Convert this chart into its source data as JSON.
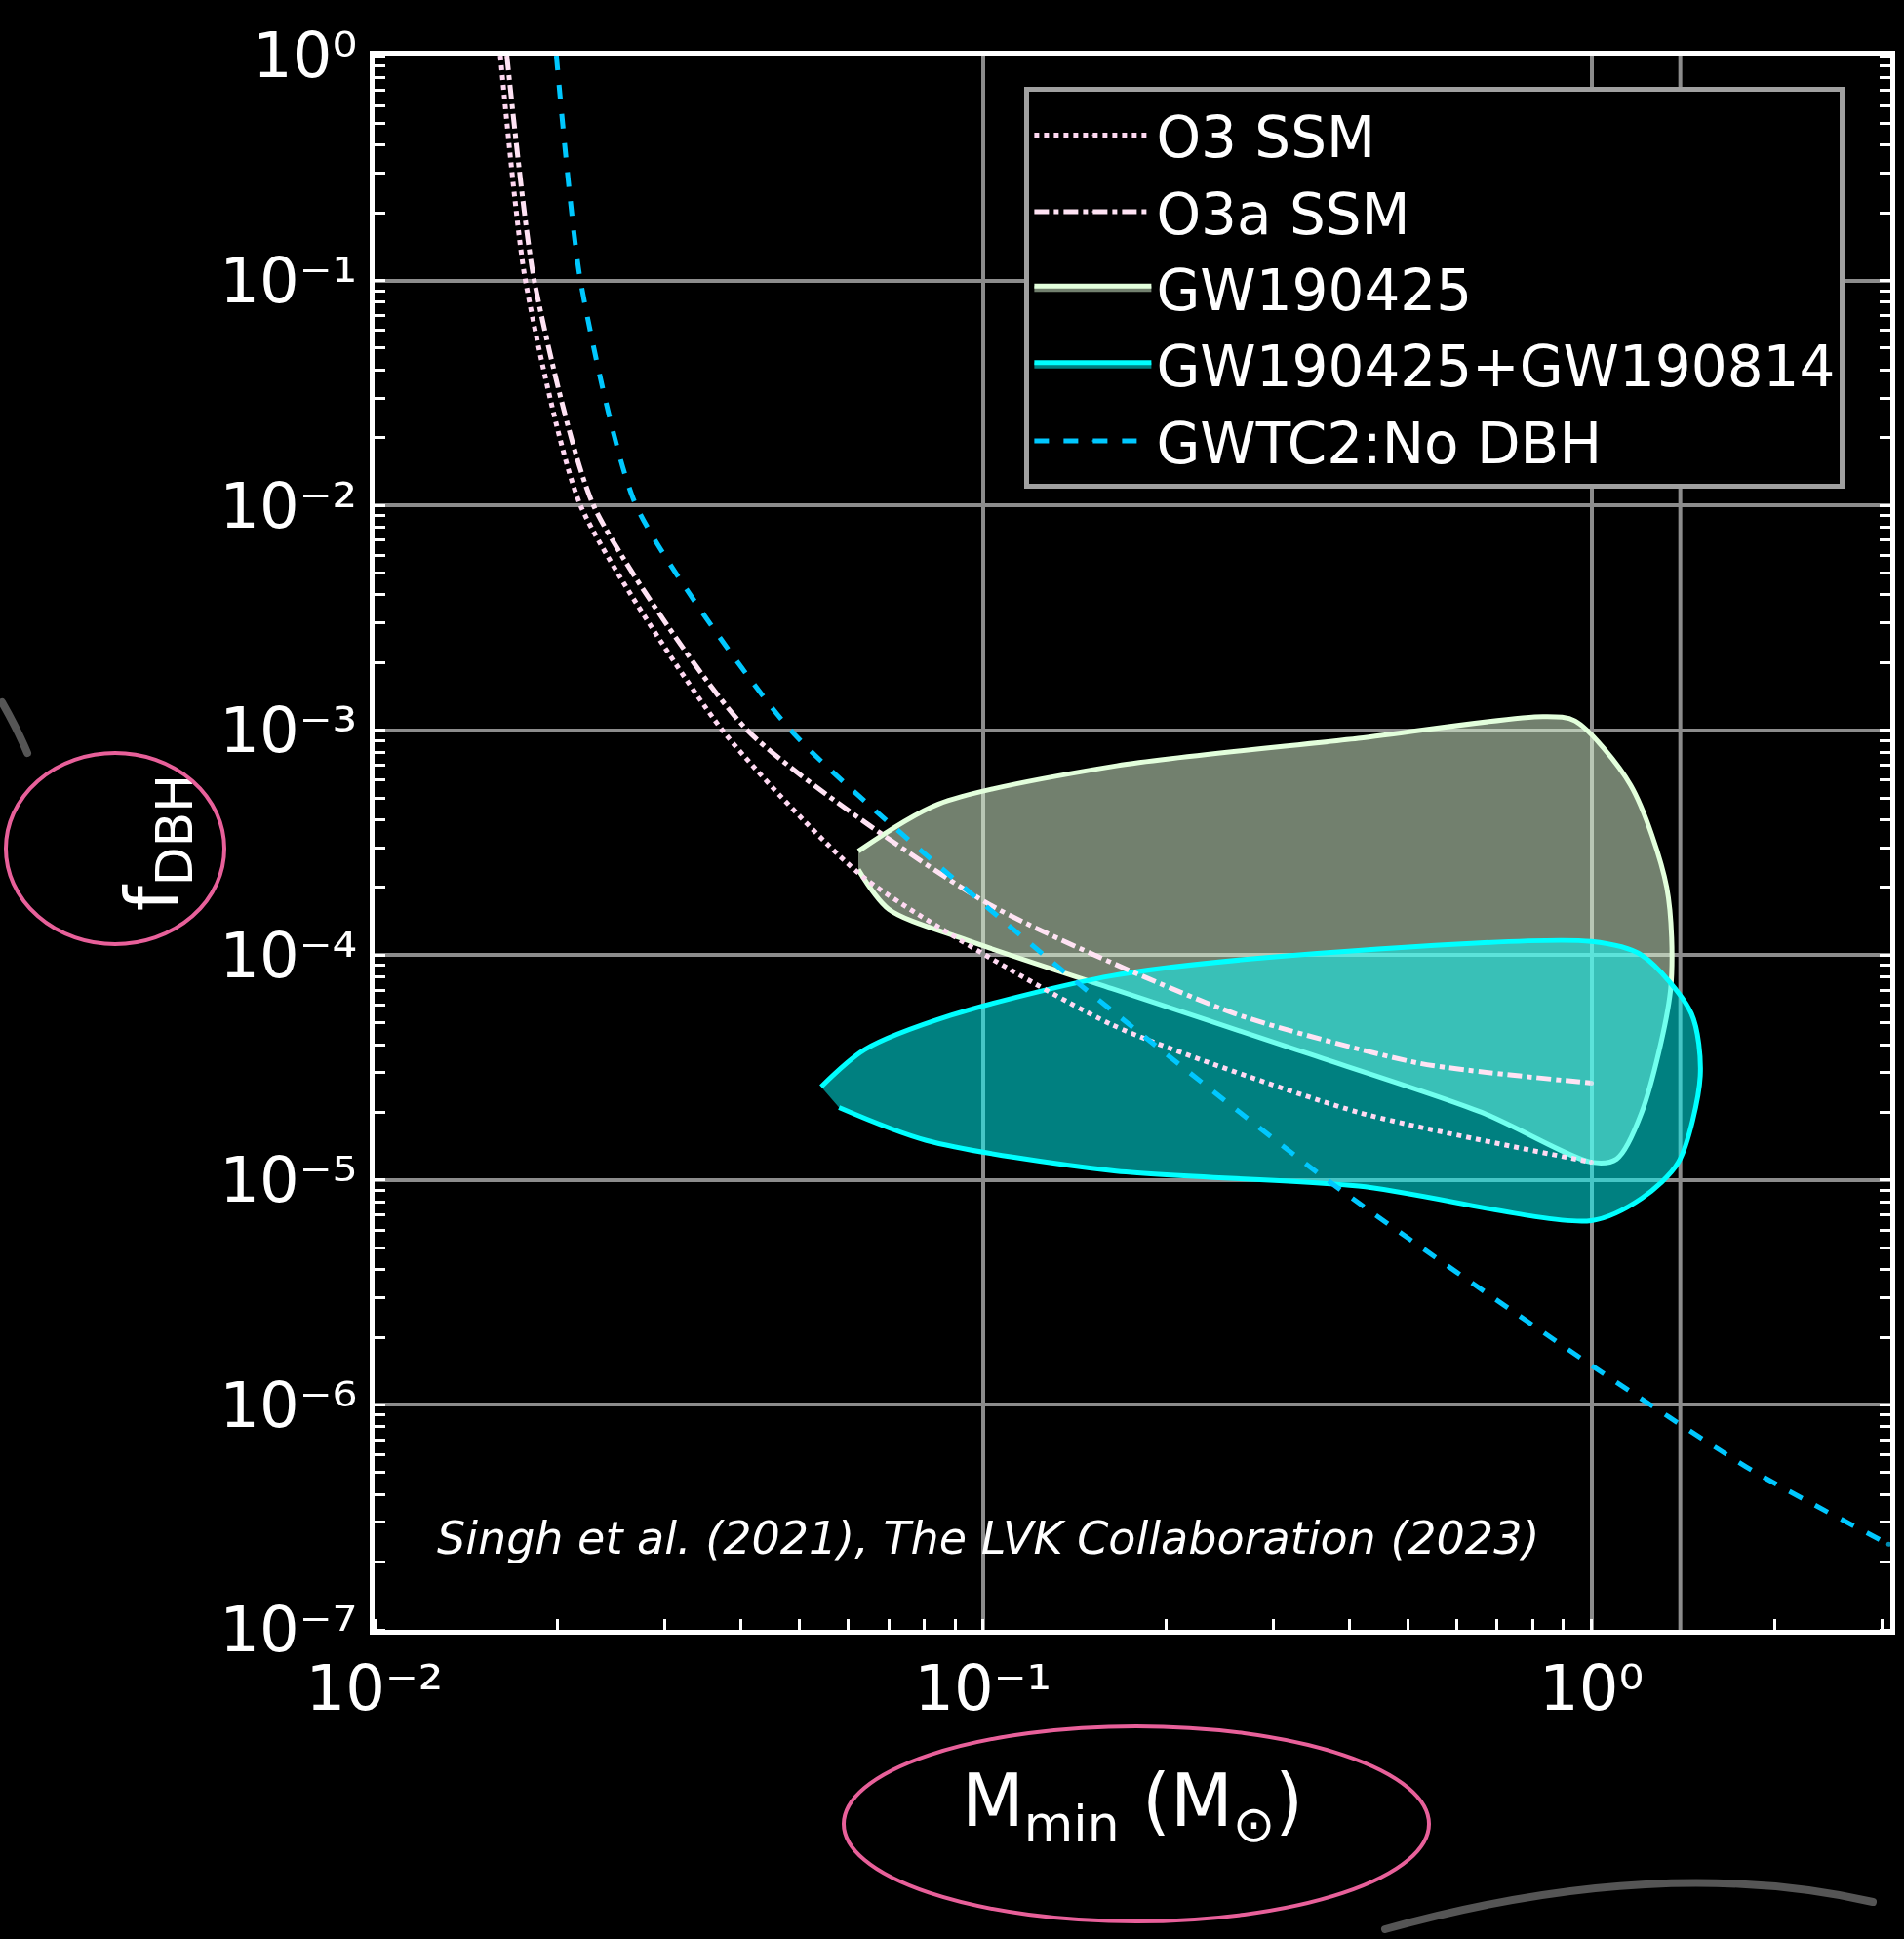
{
  "chart_data": {
    "type": "line",
    "xlabel": "M$_{min}$ (M$_{⊙}$)",
    "ylabel": "f$_{DBH}$",
    "log": "xy",
    "grid": true,
    "legend": "top right",
    "xlim": [
      0.01,
      3.1
    ],
    "ylim": [
      1e-07,
      1
    ],
    "xticks": [
      {
        "value": 0.01,
        "label": "10⁻²"
      },
      {
        "value": 0.1,
        "label": "10⁻¹"
      },
      {
        "value": 1,
        "label": "10⁰"
      }
    ],
    "yticks": [
      {
        "value": 1e-07,
        "label": "10⁻⁷"
      },
      {
        "value": 1e-06,
        "label": "10⁻⁶"
      },
      {
        "value": 1e-05,
        "label": "10⁻⁵"
      },
      {
        "value": 0.0001,
        "label": "10⁻⁴"
      },
      {
        "value": 0.001,
        "label": "10⁻³"
      },
      {
        "value": 0.01,
        "label": "10⁻²"
      },
      {
        "value": 0.1,
        "label": "10⁻¹"
      },
      {
        "value": 1,
        "label": "10⁰"
      }
    ],
    "ref_lines": [
      {
        "axis": "x",
        "value": 1.4,
        "color": "#8c8c8c"
      }
    ],
    "annotations": [
      "Singh et al. (2021), The LVK Collaboration (2023)"
    ],
    "series": [
      {
        "name": "O3 SSM",
        "line_style": "dotted",
        "color": "#ffd9f2",
        "x": [
          0.0161,
          0.0177,
          0.0218,
          0.0373,
          0.0639,
          0.163,
          0.414,
          1.0
        ],
        "values": [
          1,
          0.1,
          0.01,
          0.001,
          0.00022,
          4.9e-05,
          2e-05,
          1.2e-05
        ]
      },
      {
        "name": "O3a SSM",
        "line_style": "dashdot",
        "color": "#ffe3f4",
        "x": [
          0.0165,
          0.0183,
          0.0229,
          0.041,
          0.1017,
          0.259,
          0.523,
          1.0
        ],
        "values": [
          1,
          0.1,
          0.01,
          0.001,
          0.00017,
          5.5e-05,
          3.3e-05,
          2.7e-05
        ]
      },
      {
        "name": "GW190425",
        "type": "area",
        "line_style": "solid",
        "color": "#e3ffdc",
        "x": [
          0.0624,
          0.0845,
          0.163,
          0.414,
          0.834,
          0.94,
          1.16,
          1.33,
          1.35,
          1.21,
          1.1,
          1.0,
          0.66,
          0.327,
          0.163,
          0.0929,
          0.07,
          0.0624
        ],
        "values": [
          0.00029,
          0.00047,
          0.00069,
          0.00092,
          0.00115,
          0.0011,
          0.00057,
          0.0002,
          7.1e-05,
          2e-05,
          1.24e-05,
          1.2e-05,
          2e-05,
          3.8e-05,
          7.1e-05,
          0.000118,
          0.00016,
          0.00024
        ]
      },
      {
        "name": "GW190425+GW190814",
        "type": "area",
        "line_style": "solid",
        "color": "#00ffff",
        "x": [
          0.0542,
          0.0639,
          0.0886,
          0.163,
          0.327,
          1.0,
          1.21,
          1.46,
          1.51,
          1.39,
          1.21,
          1.0,
          0.414,
          0.163,
          0.0807,
          0.058
        ],
        "values": [
          2.6e-05,
          3.8e-05,
          5.4e-05,
          8.1e-05,
          0.0001,
          0.000115,
          0.0001,
          5.5e-05,
          2.9e-05,
          1.2e-05,
          8.3e-06,
          6.6e-06,
          9.4e-06,
          1.1e-05,
          1.5e-05,
          2.1e-05
        ]
      },
      {
        "name": "GWTC2:No DBH",
        "line_style": "dashed",
        "color": "#00c8ff",
        "x": [
          0.0199,
          0.0218,
          0.0269,
          0.0483,
          0.126,
          0.368,
          1.0,
          1.84,
          3.08
        ],
        "values": [
          1,
          0.1,
          0.01,
          0.001,
          0.0001,
          1e-05,
          1.5e-06,
          5.1e-07,
          2.4e-07
        ]
      }
    ]
  }
}
